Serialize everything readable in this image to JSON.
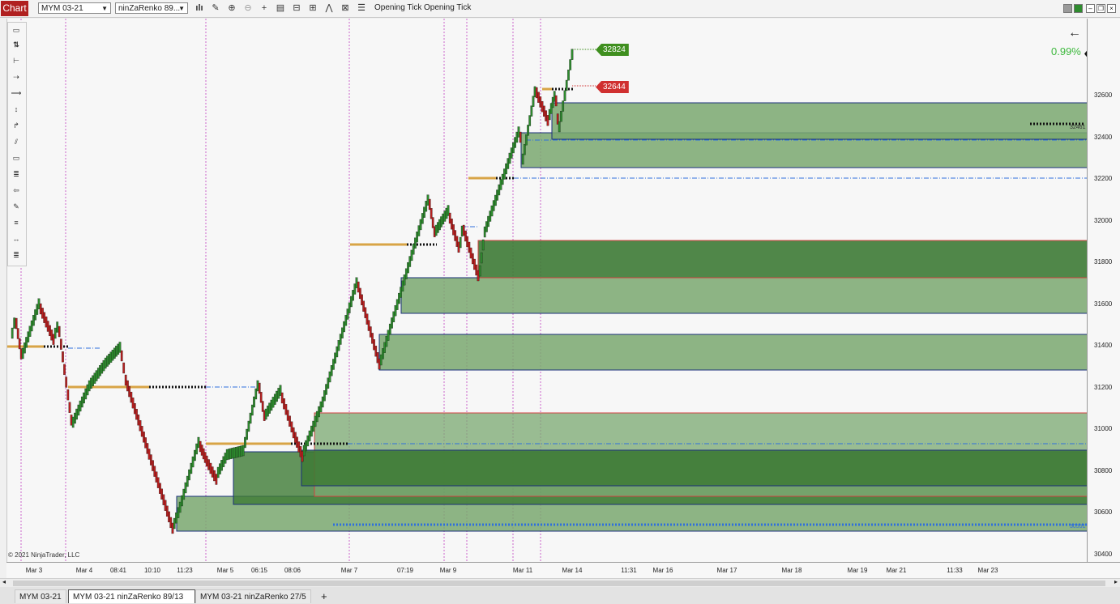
{
  "toolbar": {
    "chart_label": "Chart",
    "instrument": "MYM 03-21",
    "chart_type": "ninZaRenko 89...",
    "opening_tick_1": "Opening Tick",
    "opening_tick_2": "Opening Tick"
  },
  "y_axis": {
    "ticks": [
      "32600",
      "32400",
      "32200",
      "32000",
      "31800",
      "31600",
      "31400",
      "31200",
      "31000",
      "30800",
      "30600",
      "30400"
    ],
    "current_price": "32800"
  },
  "x_axis": {
    "ticks": [
      "Mar 3",
      "Mar 4",
      "08:41",
      "10:10",
      "11:23",
      "Mar 5",
      "06:15",
      "08:06",
      "Mar 7",
      "07:19",
      "Mar 9",
      "Mar 11",
      "Mar 14",
      "11:31",
      "Mar 16",
      "Mar 17",
      "Mar 18",
      "Mar 19",
      "Mar 21",
      "11:33",
      "Mar 23"
    ]
  },
  "overlay": {
    "target_high": "32824",
    "target_low": "32644",
    "percent_change": "0.99%",
    "back_arrow": "←",
    "label_right_1": "32461",
    "label_right_2": "30551",
    "copyright": "© 2021 NinjaTrader, LLC"
  },
  "tabs": {
    "tab1": "MYM 03-21",
    "tab2": "MYM 03-21 ninZaRenko 89/13",
    "tab3": "MYM 03-21 ninZaRenko 27/5",
    "add": "+"
  },
  "icons": {
    "bars": "bars-icon",
    "pencil": "pencil-icon",
    "zoom_in": "zoom-in-icon",
    "zoom_out": "zoom-out-icon",
    "crosshair": "crosshair-icon",
    "properties": "properties-icon",
    "templates": "templates-icon",
    "strategies": "strategies-icon",
    "data_box": "data-box-icon",
    "list": "list-icon"
  },
  "colors": {
    "bull_brick": "#2e8b2e",
    "bear_brick": "#b82020",
    "zone_light": "#7aa870",
    "zone_dark": "#3d7a35",
    "zone_border": "#1a2f7a",
    "supply_border": "#d04040",
    "level_gold": "#d8a446",
    "dotted_blue": "#2f6fdc",
    "session_magenta": "#c040c0",
    "target_green": "#3f8f1f",
    "target_red": "#d03030"
  }
}
